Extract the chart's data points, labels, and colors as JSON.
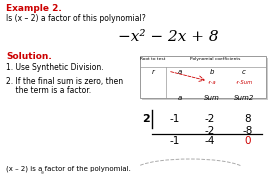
{
  "bg_color": "#ffffff",
  "title": "Example 2.",
  "title_color": "#cc0000",
  "question": "Is (x – 2) a factor of this polynomial?",
  "polynomial": "−x² − 2x + 8",
  "solution_label": "Solution.",
  "solution_color": "#cc0000",
  "step1": "1. Use Synthetic Division.",
  "step2_line1": "2. If the final sum is zero, then",
  "step2_line2": "    the term is a factor.",
  "conclusion": "(x – 2) is a factor of the polynomial.",
  "synth_r": "2",
  "synth_coeffs": [
    "-1",
    "-2",
    "8"
  ],
  "synth_row2": [
    "-2",
    "-8"
  ],
  "synth_row3": [
    "-1",
    "-4",
    "0"
  ],
  "zero_color": "#cc0000",
  "table_header_root": "Root to test",
  "table_header_poly": "Polynomial coefficients",
  "table_r_label": "r",
  "table_a_label": "a",
  "table_b_label": "b",
  "table_c_label": "c",
  "table_ra_label": "·r·a",
  "table_rsum_label": "·r·Sum",
  "table_a2_label": "a",
  "table_sum_label": "Sum",
  "table_sum2_label": "Sum2",
  "figw": 2.72,
  "figh": 1.86,
  "dpi": 100
}
